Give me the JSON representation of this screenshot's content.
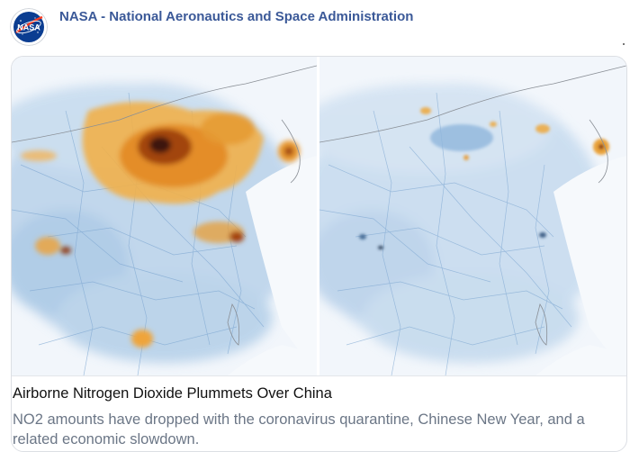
{
  "post": {
    "author": "NASA - National Aeronautics and Space Administration",
    "avatar_text": "NASA"
  },
  "card": {
    "title": "Airborne Nitrogen Dioxide Plummets Over China",
    "description": "NO2 amounts have dropped with the coronavirus quarantine, Chinese New Year, and a related economic slowdown."
  },
  "colors": {
    "author_link": "#3b5998",
    "description_text": "#6b7686",
    "map_background": "#f4f7fb",
    "no2_low": "#9dc0e0",
    "no2_mid": "#f2a33a",
    "no2_high": "#4a1a08",
    "nasa_blue": "#0b3d91"
  }
}
